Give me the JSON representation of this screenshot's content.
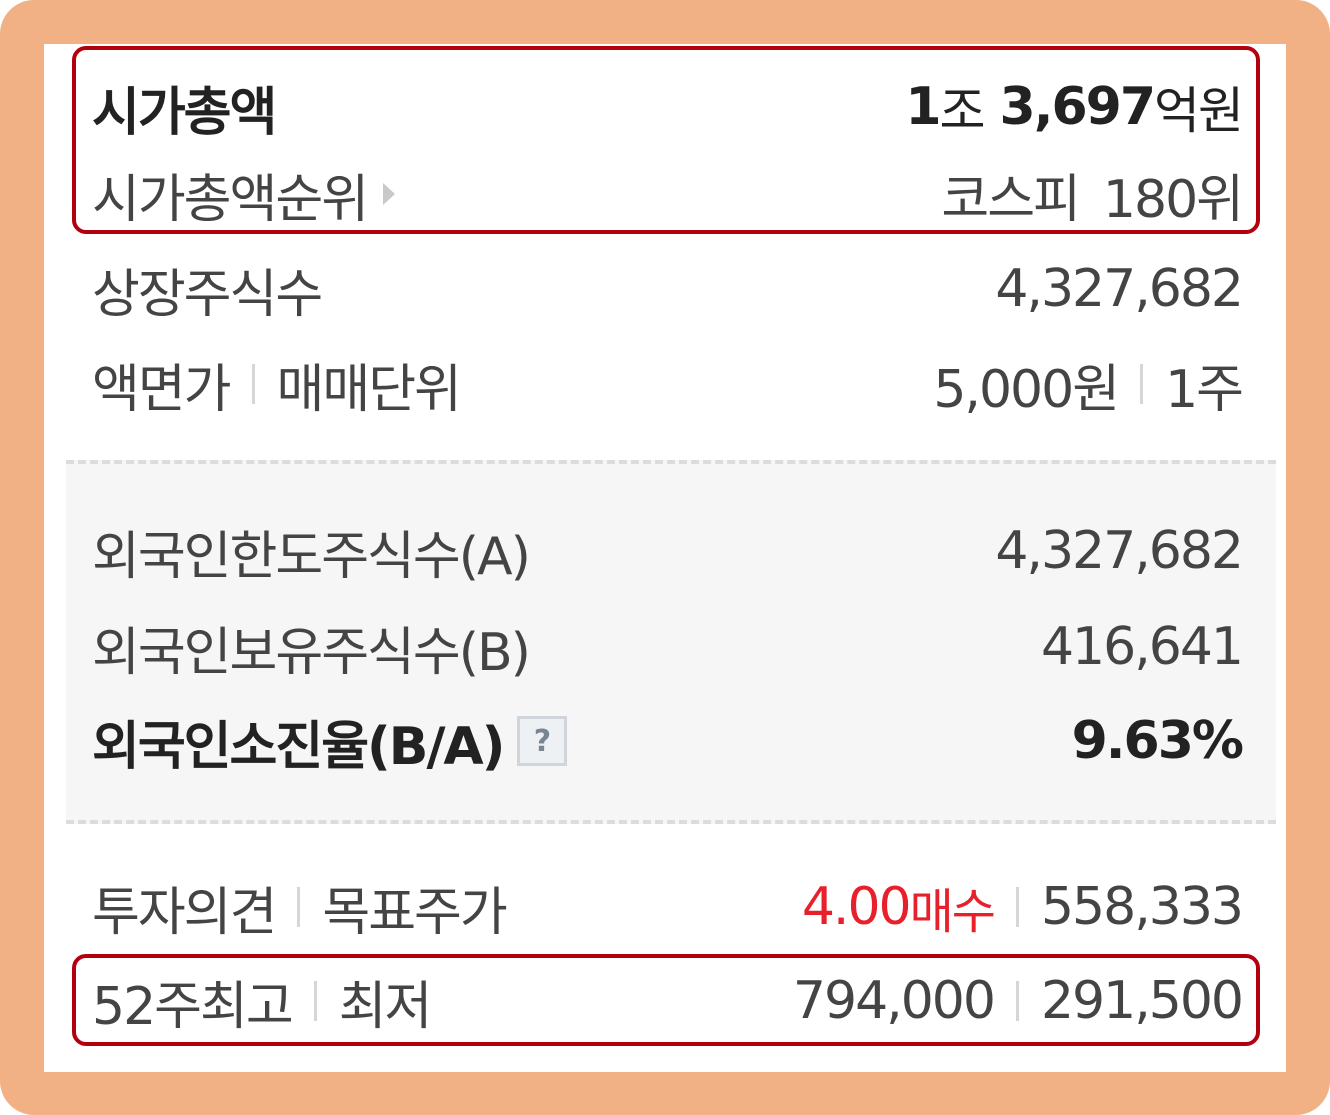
{
  "market_cap": {
    "label": "시가총액",
    "value_num1": "1",
    "unit1": "조",
    "value_num2": "3,697",
    "unit2": "억원"
  },
  "market_cap_rank": {
    "label": "시가총액순위",
    "market": "코스피",
    "rank": "180위"
  },
  "listed_shares": {
    "label": "상장주식수",
    "value": "4,327,682"
  },
  "par_value": {
    "label1": "액면가",
    "label2": "매매단위",
    "value1": "5,000원",
    "value2": "1주"
  },
  "foreign_limit": {
    "label": "외국인한도주식수(A)",
    "value": "4,327,682"
  },
  "foreign_holding": {
    "label": "외국인보유주식수(B)",
    "value": "416,641"
  },
  "foreign_ratio": {
    "label": "외국인소진율(B/A)",
    "help_glyph": "?",
    "value": "9.63%"
  },
  "opinion": {
    "label1": "투자의견",
    "label2": "목표주가",
    "value1_num": "4.00",
    "value1_text": "매수",
    "value2": "558,333"
  },
  "week52": {
    "label1": "52주최고",
    "label2": "최저",
    "high": "794,000",
    "low": "291,500"
  },
  "colors": {
    "frame": "#f2b185",
    "highlight": "#b3000d",
    "buy": "#e8202b"
  }
}
